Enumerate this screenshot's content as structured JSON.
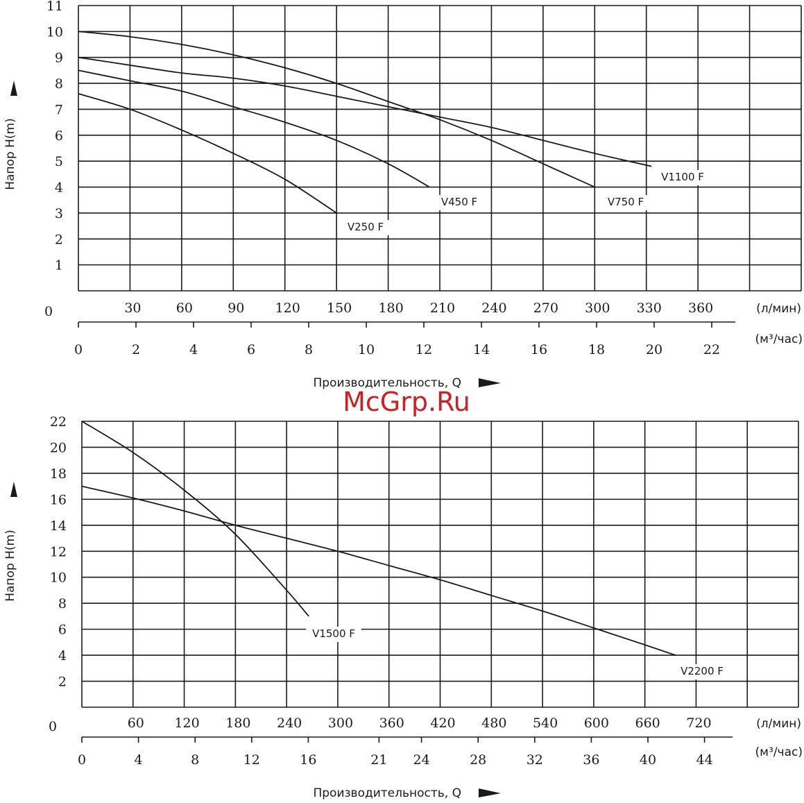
{
  "watermark": "McGrp.Ru",
  "chart_data": [
    {
      "type": "line",
      "ylabel": "Напор H(m)",
      "xlabel": "Производительность, Q",
      "x_unit_primary": "(л/мин)",
      "x_unit_secondary": "(м³/час)",
      "origin_label": "0",
      "xlim": [
        0,
        420
      ],
      "ylim": [
        0,
        11
      ],
      "x_grid_step": 30,
      "y_grid_step": 1,
      "x_ticks": [
        "30",
        "60",
        "90",
        "120",
        "150",
        "180",
        "210",
        "240",
        "270",
        "300",
        "330",
        "360"
      ],
      "y_ticks": [
        "1",
        "2",
        "3",
        "4",
        "5",
        "6",
        "7",
        "8",
        "9",
        "10",
        "11"
      ],
      "secondary_ticks": [
        {
          "value": 0,
          "label": "0"
        },
        {
          "value": 2,
          "label": "2"
        },
        {
          "value": 4,
          "label": "4"
        },
        {
          "value": 6,
          "label": "6"
        },
        {
          "value": 8,
          "label": "8"
        },
        {
          "value": 10,
          "label": "10"
        },
        {
          "value": 12,
          "label": "12"
        },
        {
          "value": 14,
          "label": "14"
        },
        {
          "value": 16,
          "label": "16"
        },
        {
          "value": 18,
          "label": "18"
        },
        {
          "value": 20,
          "label": "20"
        },
        {
          "value": 22,
          "label": "22"
        }
      ],
      "grid": true,
      "series": [
        {
          "name": "V250 F",
          "x": [
            0,
            30,
            60,
            90,
            120,
            150
          ],
          "y": [
            7.6,
            7.0,
            6.2,
            5.3,
            4.3,
            3.0
          ]
        },
        {
          "name": "V450 F",
          "x": [
            0,
            30,
            60,
            90,
            120,
            150,
            180,
            204
          ],
          "y": [
            8.5,
            8.1,
            7.7,
            7.1,
            6.5,
            5.8,
            4.9,
            4.0
          ]
        },
        {
          "name": "V750 F",
          "x": [
            0,
            30,
            60,
            90,
            120,
            150,
            180,
            210,
            240,
            270,
            300
          ],
          "y": [
            10.0,
            9.8,
            9.5,
            9.1,
            8.6,
            8.0,
            7.3,
            6.6,
            5.8,
            4.9,
            4.0
          ]
        },
        {
          "name": "V1100 F",
          "x": [
            0,
            30,
            60,
            90,
            120,
            150,
            180,
            210,
            240,
            270,
            300,
            333
          ],
          "y": [
            9.0,
            8.7,
            8.4,
            8.2,
            7.9,
            7.5,
            7.1,
            6.7,
            6.3,
            5.8,
            5.3,
            4.8
          ]
        }
      ]
    },
    {
      "type": "line",
      "ylabel": "Напор H(m)",
      "xlabel": "Производительность, Q",
      "x_unit_primary": "(л/мин)",
      "x_unit_secondary": "(м³/час)",
      "origin_label": "0",
      "xlim": [
        0,
        840
      ],
      "ylim": [
        0,
        22
      ],
      "x_grid_step": 60,
      "y_grid_step": 2,
      "x_ticks": [
        "60",
        "120",
        "180",
        "240",
        "300",
        "360",
        "420",
        "480",
        "540",
        "600",
        "660",
        "720"
      ],
      "y_ticks": [
        "2",
        "4",
        "6",
        "8",
        "10",
        "12",
        "14",
        "16",
        "18",
        "20",
        "22"
      ],
      "secondary_ticks": [
        {
          "value": 0,
          "label": "0"
        },
        {
          "value": 4,
          "label": "4"
        },
        {
          "value": 8,
          "label": "8"
        },
        {
          "value": 12,
          "label": "12"
        },
        {
          "value": 16,
          "label": "16"
        },
        {
          "value": 21,
          "label": "21"
        },
        {
          "value": 24,
          "label": "24"
        },
        {
          "value": 28,
          "label": "28"
        },
        {
          "value": 32,
          "label": "32"
        },
        {
          "value": 36,
          "label": "36"
        },
        {
          "value": 40,
          "label": "40"
        },
        {
          "value": 44,
          "label": "44"
        }
      ],
      "grid": true,
      "series": [
        {
          "name": "V1500 F",
          "x": [
            0,
            60,
            120,
            180,
            240,
            266
          ],
          "y": [
            22.0,
            19.6,
            16.7,
            13.3,
            9.0,
            7.0
          ]
        },
        {
          "name": "V2200 F",
          "x": [
            0,
            60,
            120,
            180,
            240,
            300,
            360,
            420,
            480,
            540,
            600,
            660,
            696
          ],
          "y": [
            17.0,
            16.1,
            15.1,
            14.0,
            13.0,
            12.0,
            10.9,
            9.8,
            8.6,
            7.4,
            6.1,
            4.8,
            4.0
          ]
        }
      ]
    }
  ]
}
